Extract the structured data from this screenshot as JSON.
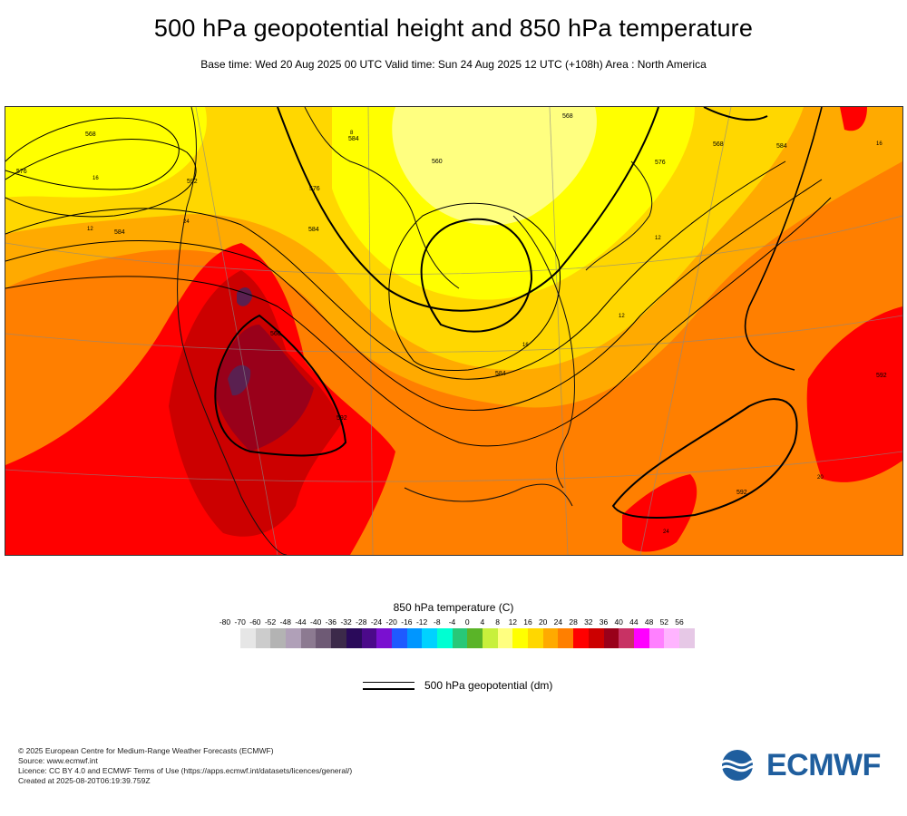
{
  "header": {
    "title": "500 hPa geopotential height and 850 hPa temperature",
    "subtitle": "Base time: Wed 20 Aug 2025 00 UTC Valid time: Sun 24 Aug 2025 12 UTC (+108h) Area : North America"
  },
  "map": {
    "area": "North America",
    "contour_labels": [
      "568",
      "576",
      "584",
      "592",
      "560",
      "568",
      "576",
      "584",
      "592",
      "568",
      "576",
      "584",
      "592",
      "584",
      "592",
      "584",
      "560"
    ],
    "temperature_labels": [
      "12",
      "16",
      "24",
      "20",
      "12",
      "12",
      "16",
      "24",
      "16",
      "8"
    ],
    "colors": {
      "yellow": "#ffff00",
      "light_yellow": "#ffff80",
      "gold": "#ffd700",
      "amber": "#ffaa00",
      "orange": "#ff7f00",
      "red": "#ff0000",
      "dark_red": "#cc0000",
      "maroon": "#99001a",
      "purple_dark": "#5a2050"
    }
  },
  "legend": {
    "title": "850 hPa temperature (C)",
    "ticks": [
      "-80",
      "-70",
      "-60",
      "-52",
      "-48",
      "-44",
      "-40",
      "-36",
      "-32",
      "-28",
      "-24",
      "-20",
      "-16",
      "-12",
      "-8",
      "-4",
      "0",
      "4",
      "8",
      "12",
      "16",
      "20",
      "24",
      "28",
      "32",
      "36",
      "40",
      "44",
      "48",
      "52",
      "56"
    ],
    "colors": [
      "#e6e6e6",
      "#cccccc",
      "#b3b3b3",
      "#b0a0b8",
      "#8c7a91",
      "#6e5a75",
      "#3c2a4a",
      "#2a0a5a",
      "#4b0a8a",
      "#7a10d0",
      "#1e5aff",
      "#0096ff",
      "#00d2ff",
      "#00ffd2",
      "#28c878",
      "#5ab428",
      "#c8f03c",
      "#ffff80",
      "#ffff00",
      "#ffd700",
      "#ffaa00",
      "#ff7f00",
      "#ff0000",
      "#cc0000",
      "#99001a",
      "#c83264",
      "#ff00ff",
      "#ff80ff",
      "#ffb4ff",
      "#e6c8e6",
      "#e6e6e6"
    ],
    "geopotential_label": "500 hPa geopotential (dm)"
  },
  "footer": {
    "line1": "© 2025 European Centre for Medium-Range Weather Forecasts (ECMWF)",
    "line2": "Source: www.ecmwf.int",
    "line3": "Licence: CC BY 4.0 and ECMWF Terms of Use (https://apps.ecmwf.int/datasets/licences/general/)",
    "line4": "Created at 2025-08-20T06:19:39.759Z"
  },
  "logo": {
    "text": "ECMWF",
    "color": "#1f5e9e"
  }
}
